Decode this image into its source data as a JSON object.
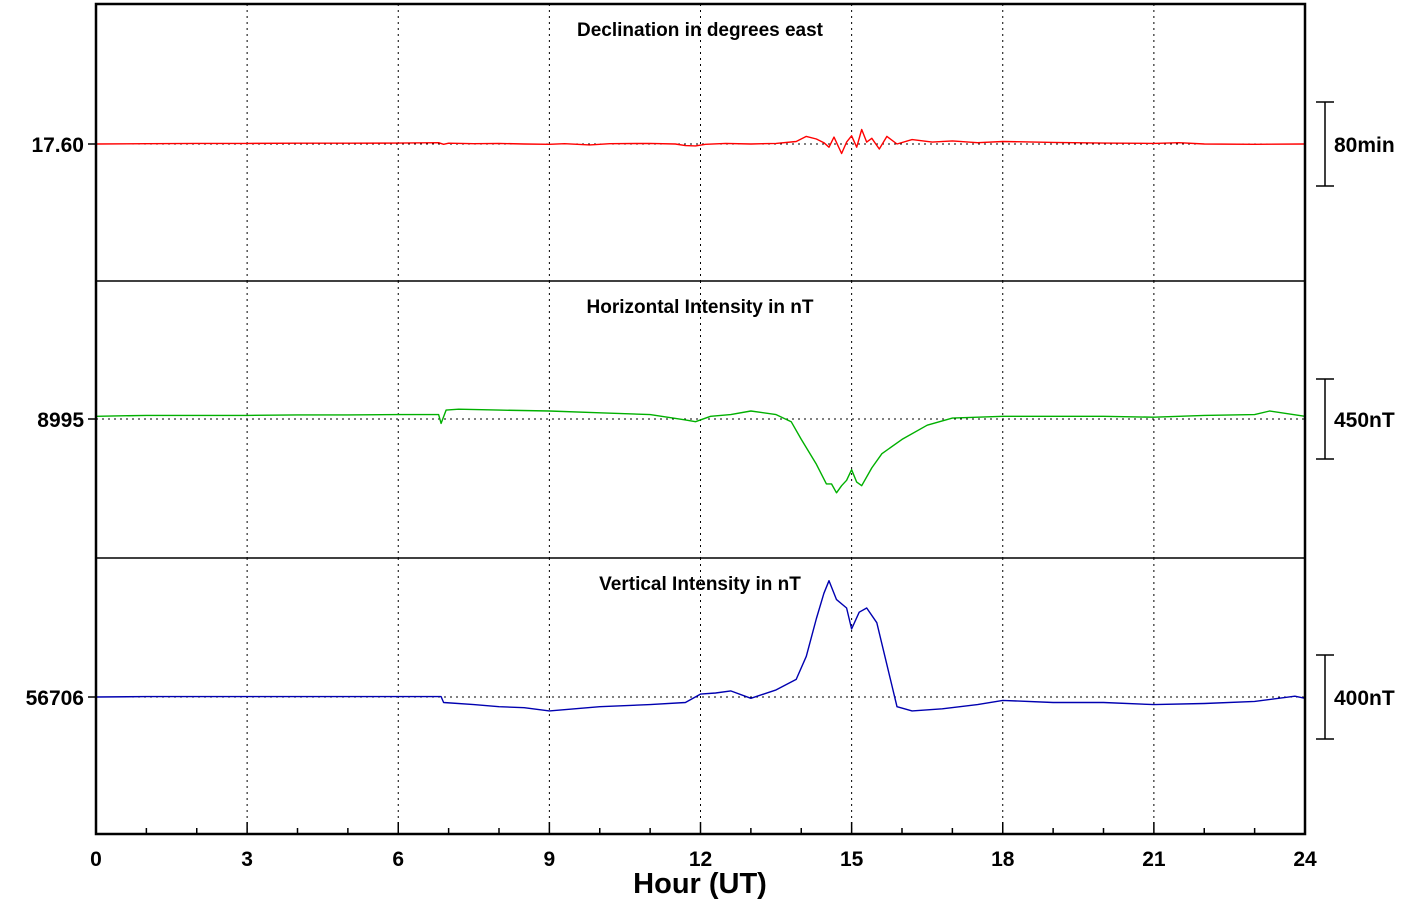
{
  "chart_data": {
    "type": "line",
    "xlabel": "Hour (UT)",
    "xlim": [
      0,
      24
    ],
    "x_ticks": [
      0,
      3,
      6,
      9,
      12,
      15,
      18,
      21,
      24
    ],
    "x_tick_labels": [
      "0",
      "3",
      "6",
      "9",
      "12",
      "15",
      "18",
      "21",
      "24"
    ],
    "grid": true,
    "panels": [
      {
        "name": "Declination in degrees east",
        "baseline_label": "17.60",
        "scale_label": "80min",
        "color": "#ff0000",
        "series": {
          "name": "Declination in degrees east",
          "x": [
            0,
            1,
            2,
            3,
            4,
            5,
            6,
            6.8,
            6.9,
            7.0,
            7.5,
            8,
            8.5,
            9,
            9.3,
            9.8,
            10.2,
            11,
            11.5,
            11.7,
            11.9,
            12.1,
            12.5,
            13,
            13.5,
            13.9,
            14.1,
            14.3,
            14.45,
            14.55,
            14.65,
            14.8,
            14.9,
            15.0,
            15.1,
            15.2,
            15.3,
            15.4,
            15.55,
            15.7,
            15.9,
            16.2,
            16.6,
            17,
            17.5,
            18,
            19,
            20,
            21,
            21.5,
            22,
            23,
            24
          ],
          "y": [
            17.6,
            17.605,
            17.61,
            17.61,
            17.612,
            17.612,
            17.615,
            17.62,
            17.595,
            17.612,
            17.605,
            17.61,
            17.6,
            17.595,
            17.605,
            17.585,
            17.605,
            17.61,
            17.6,
            17.575,
            17.57,
            17.595,
            17.61,
            17.6,
            17.61,
            17.64,
            17.72,
            17.68,
            17.62,
            17.55,
            17.71,
            17.45,
            17.63,
            17.73,
            17.55,
            17.83,
            17.63,
            17.69,
            17.52,
            17.72,
            17.6,
            17.67,
            17.63,
            17.65,
            17.62,
            17.64,
            17.625,
            17.615,
            17.61,
            17.62,
            17.6,
            17.595,
            17.6
          ]
        }
      },
      {
        "name": "Horizontal Intensity in nT",
        "baseline_label": "8995",
        "scale_label": "450nT",
        "color": "#00b000",
        "series": {
          "name": "Horizontal Intensity in nT",
          "x": [
            0,
            1,
            2,
            3,
            4,
            5,
            6,
            6.8,
            6.85,
            6.95,
            7.2,
            8,
            9,
            10,
            11,
            11.7,
            11.9,
            12.2,
            12.6,
            13,
            13.5,
            13.8,
            14.0,
            14.3,
            14.5,
            14.6,
            14.7,
            14.8,
            14.9,
            15.0,
            15.1,
            15.2,
            15.4,
            15.6,
            16.0,
            16.5,
            17,
            18,
            19,
            20,
            21,
            22,
            23,
            23.3,
            24
          ],
          "y": [
            9010,
            9015,
            9015,
            9015,
            9018,
            9018,
            9020,
            9020,
            8970,
            9045,
            9050,
            9045,
            9040,
            9030,
            9020,
            8990,
            8980,
            9010,
            9020,
            9040,
            9020,
            8980,
            8880,
            8740,
            8630,
            8630,
            8580,
            8620,
            8650,
            8710,
            8640,
            8620,
            8720,
            8800,
            8880,
            8960,
            9000,
            9010,
            9010,
            9010,
            9005,
            9015,
            9020,
            9040,
            9010
          ]
        }
      },
      {
        "name": "Vertical Intensity in nT",
        "baseline_label": "56706",
        "scale_label": "400nT",
        "color": "#0000b0",
        "series": {
          "name": "Vertical Intensity in nT",
          "x": [
            0,
            1,
            2,
            3,
            4,
            5,
            6,
            6.85,
            6.9,
            7.5,
            8,
            8.5,
            9,
            9.5,
            10,
            11,
            11.7,
            12,
            12.3,
            12.6,
            13,
            13.5,
            13.9,
            14.1,
            14.3,
            14.45,
            14.55,
            14.7,
            14.9,
            15.0,
            15.15,
            15.3,
            15.5,
            15.7,
            15.9,
            16.2,
            16.8,
            17.5,
            18,
            19,
            20,
            21,
            22,
            23,
            23.8,
            24
          ],
          "y": [
            56706,
            56708,
            56708,
            56708,
            56708,
            56708,
            56708,
            56708,
            56680,
            56670,
            56660,
            56655,
            56640,
            56650,
            56660,
            56670,
            56680,
            56720,
            56725,
            56735,
            56700,
            56740,
            56790,
            56900,
            57080,
            57200,
            57260,
            57170,
            57130,
            57030,
            57110,
            57130,
            57060,
            56860,
            56660,
            56640,
            56650,
            56670,
            56690,
            56680,
            56680,
            56670,
            56675,
            56685,
            56710,
            56700
          ]
        }
      }
    ]
  }
}
